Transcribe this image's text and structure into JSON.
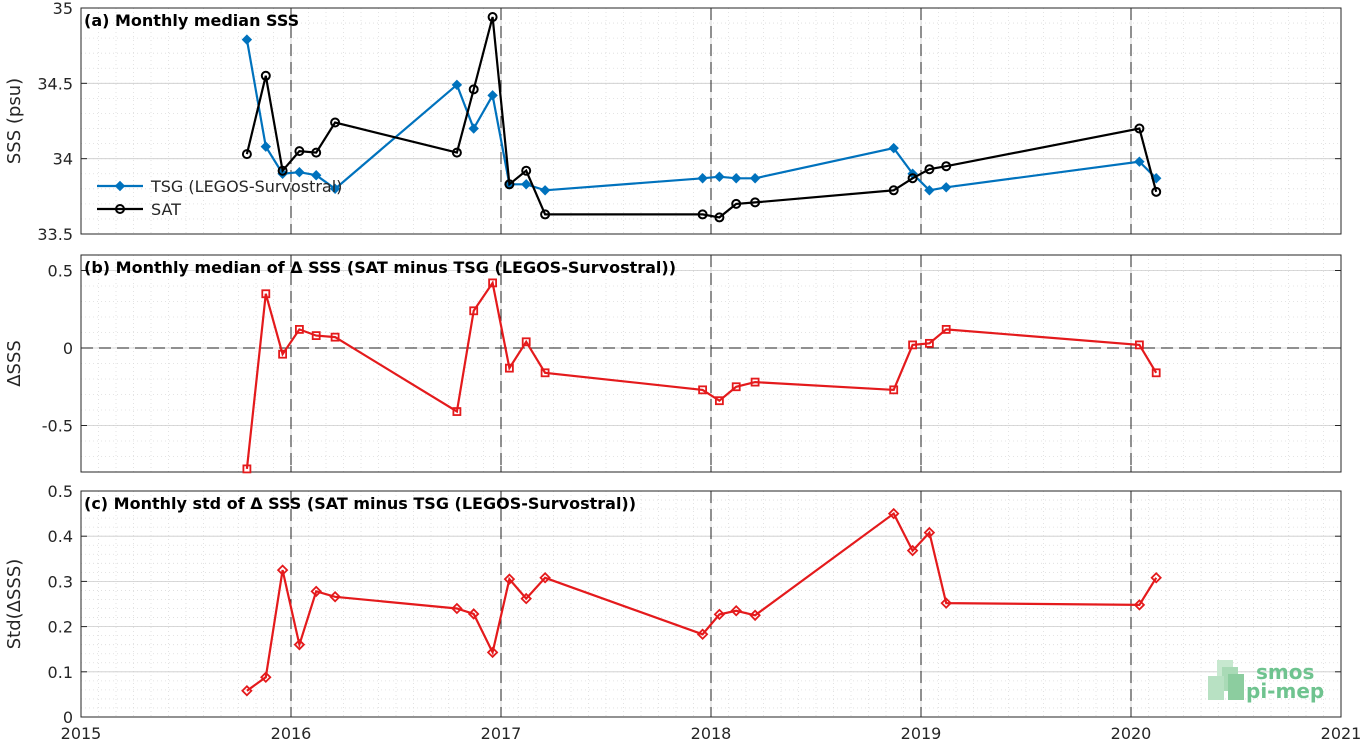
{
  "chart_data": [
    {
      "type": "line",
      "title": "(a) Monthly median SSS",
      "ylabel": "SSS (psu)",
      "xlim": [
        2015,
        2021
      ],
      "ylim": [
        33.5,
        35
      ],
      "yticks": [
        33.5,
        34,
        34.5,
        35
      ],
      "yticklabels": [
        "33.5",
        "34",
        "34.5",
        "35"
      ],
      "grid": true,
      "legend_position": "left",
      "series": [
        {
          "name": "TSG (LEGOS-Survostral)",
          "color": "#0072BD",
          "marker": "diamond",
          "x": [
            2015.79,
            2015.88,
            2015.96,
            2016.04,
            2016.12,
            2016.21,
            2016.79,
            2016.87,
            2016.96,
            2017.04,
            2017.12,
            2017.21,
            2017.96,
            2018.04,
            2018.12,
            2018.21,
            2018.87,
            2018.96,
            2019.04,
            2019.12,
            2020.04,
            2020.12
          ],
          "values": [
            34.79,
            34.08,
            33.9,
            33.91,
            33.89,
            33.8,
            34.49,
            34.2,
            34.42,
            33.83,
            33.83,
            33.79,
            33.87,
            33.88,
            33.87,
            33.87,
            34.07,
            33.9,
            33.79,
            33.81,
            33.98,
            33.87
          ]
        },
        {
          "name": "SAT",
          "color": "#000000",
          "marker": "circle",
          "x": [
            2015.79,
            2015.88,
            2015.96,
            2016.04,
            2016.12,
            2016.21,
            2016.79,
            2016.87,
            2016.96,
            2017.04,
            2017.12,
            2017.21,
            2017.96,
            2018.04,
            2018.12,
            2018.21,
            2018.87,
            2018.96,
            2019.04,
            2019.12,
            2020.04,
            2020.12
          ],
          "values": [
            34.03,
            34.55,
            33.92,
            34.05,
            34.04,
            34.24,
            34.04,
            34.46,
            34.94,
            33.83,
            33.92,
            33.63,
            33.63,
            33.61,
            33.7,
            33.71,
            33.79,
            33.87,
            33.93,
            33.95,
            34.2,
            33.78
          ]
        }
      ]
    },
    {
      "type": "line",
      "title": "(b) Monthly median of Δ SSS (SAT minus TSG (LEGOS-Survostral))",
      "ylabel": "ΔSSS",
      "xlim": [
        2015,
        2021
      ],
      "ylim": [
        -0.8,
        0.6
      ],
      "yticks": [
        -0.5,
        0,
        0.5
      ],
      "yticklabels": [
        "-0.5",
        "0",
        "0.5"
      ],
      "grid": true,
      "series": [
        {
          "color": "#E41A1C",
          "marker": "square",
          "x": [
            2015.79,
            2015.88,
            2015.96,
            2016.04,
            2016.12,
            2016.21,
            2016.79,
            2016.87,
            2016.96,
            2017.04,
            2017.12,
            2017.21,
            2017.96,
            2018.04,
            2018.12,
            2018.21,
            2018.87,
            2018.96,
            2019.04,
            2019.12,
            2020.04,
            2020.12
          ],
          "values": [
            -0.78,
            0.35,
            -0.04,
            0.12,
            0.08,
            0.07,
            -0.41,
            0.24,
            0.42,
            -0.13,
            0.04,
            -0.16,
            -0.27,
            -0.34,
            -0.25,
            -0.22,
            -0.27,
            0.02,
            0.03,
            0.12,
            0.02,
            -0.16
          ]
        }
      ]
    },
    {
      "type": "line",
      "title": "(c) Monthly std of Δ SSS (SAT minus TSG (LEGOS-Survostral))",
      "ylabel": "Std(ΔSSS)",
      "xlabel": "",
      "xlim": [
        2015,
        2021
      ],
      "xticks": [
        2015,
        2016,
        2017,
        2018,
        2019,
        2020,
        2021
      ],
      "xticklabels": [
        "2015",
        "2016",
        "2017",
        "2018",
        "2019",
        "2020",
        "2021"
      ],
      "ylim": [
        0,
        0.5
      ],
      "yticks": [
        0,
        0.1,
        0.2,
        0.3,
        0.4,
        0.5
      ],
      "yticklabels": [
        "0",
        "0.1",
        "0.2",
        "0.3",
        "0.4",
        "0.5"
      ],
      "grid": true,
      "series": [
        {
          "color": "#E41A1C",
          "marker": "diamond",
          "x": [
            2015.79,
            2015.88,
            2015.96,
            2016.04,
            2016.12,
            2016.21,
            2016.79,
            2016.87,
            2016.96,
            2017.04,
            2017.12,
            2017.21,
            2017.96,
            2018.04,
            2018.12,
            2018.21,
            2018.87,
            2018.96,
            2019.04,
            2019.12,
            2020.04,
            2020.12
          ],
          "values": [
            0.058,
            0.088,
            0.325,
            0.16,
            0.278,
            0.266,
            0.24,
            0.228,
            0.143,
            0.305,
            0.262,
            0.308,
            0.183,
            0.227,
            0.235,
            0.225,
            0.45,
            0.368,
            0.408,
            0.252,
            0.248,
            0.308
          ]
        }
      ]
    }
  ],
  "watermark": {
    "line1": "smos",
    "line2": "pi-mep",
    "color": "#6fc38f"
  }
}
